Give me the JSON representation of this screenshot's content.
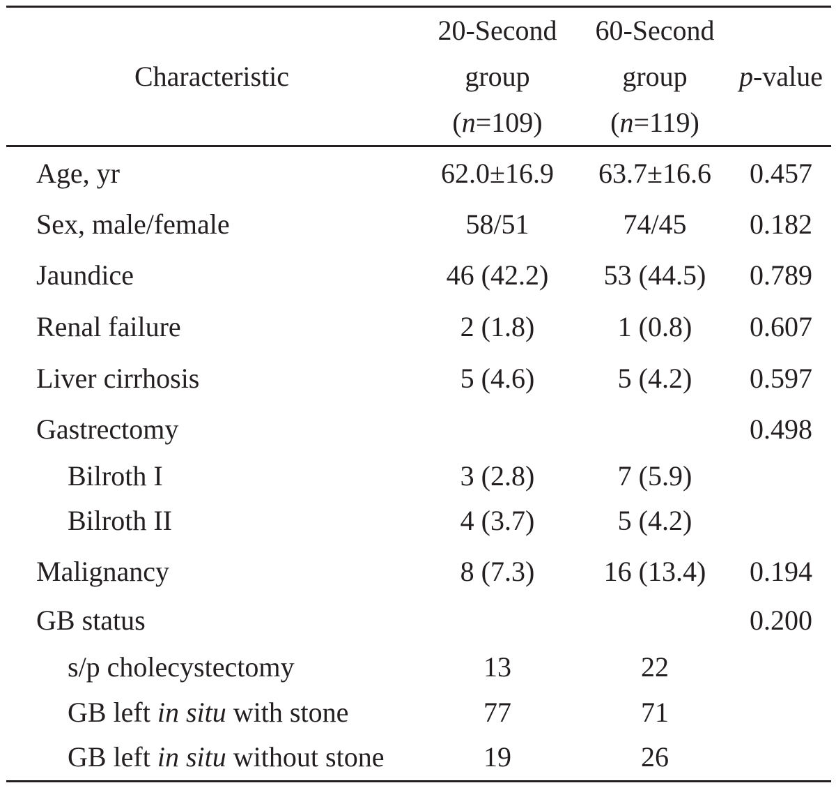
{
  "header": {
    "characteristic": "Characteristic",
    "group20": {
      "line1": "20-Second",
      "line2": "group",
      "n_open": "(",
      "n_var": "n",
      "n_rest": "=109)"
    },
    "group60": {
      "line1": "60-Second",
      "line2": "group",
      "n_open": "(",
      "n_var": "n",
      "n_rest": "=119)"
    },
    "pvalue": {
      "p": "p",
      "rest": "-value"
    }
  },
  "rows": [
    {
      "label": "Age, yr",
      "g20": "62.0±16.9",
      "g60": "63.7±16.6",
      "p": "0.457"
    },
    {
      "label": "Sex, male/female",
      "g20": "58/51",
      "g60": "74/45",
      "p": "0.182"
    },
    {
      "label": "Jaundice",
      "g20": "46 (42.2)",
      "g60": "53 (44.5)",
      "p": "0.789"
    },
    {
      "label": "Renal failure",
      "g20": "2 (1.8)",
      "g60": "1 (0.8)",
      "p": "0.607"
    },
    {
      "label": "Liver cirrhosis",
      "g20": "5 (4.6)",
      "g60": "5 (4.2)",
      "p": "0.597"
    },
    {
      "label": "Gastrectomy",
      "g20": "",
      "g60": "",
      "p": "0.498"
    },
    {
      "label": "Bilroth I",
      "g20": "3 (2.8)",
      "g60": "7 (5.9)",
      "p": ""
    },
    {
      "label": "Bilroth II",
      "g20": "4 (3.7)",
      "g60": "5 (4.2)",
      "p": ""
    },
    {
      "label": "Malignancy",
      "g20": "8 (7.3)",
      "g60": "16 (13.4)",
      "p": "0.194"
    },
    {
      "label": "GB status",
      "g20": "",
      "g60": "",
      "p": "0.200"
    },
    {
      "label": "s/p cholecystectomy",
      "g20": "13",
      "g60": "22",
      "p": ""
    },
    {
      "label_pre": "GB left ",
      "label_em": "in situ",
      "label_post": " with stone",
      "g20": "77",
      "g60": "71",
      "p": ""
    },
    {
      "label_pre": "GB left ",
      "label_em": "in situ",
      "label_post": " without stone",
      "g20": "19",
      "g60": "26",
      "p": ""
    }
  ]
}
